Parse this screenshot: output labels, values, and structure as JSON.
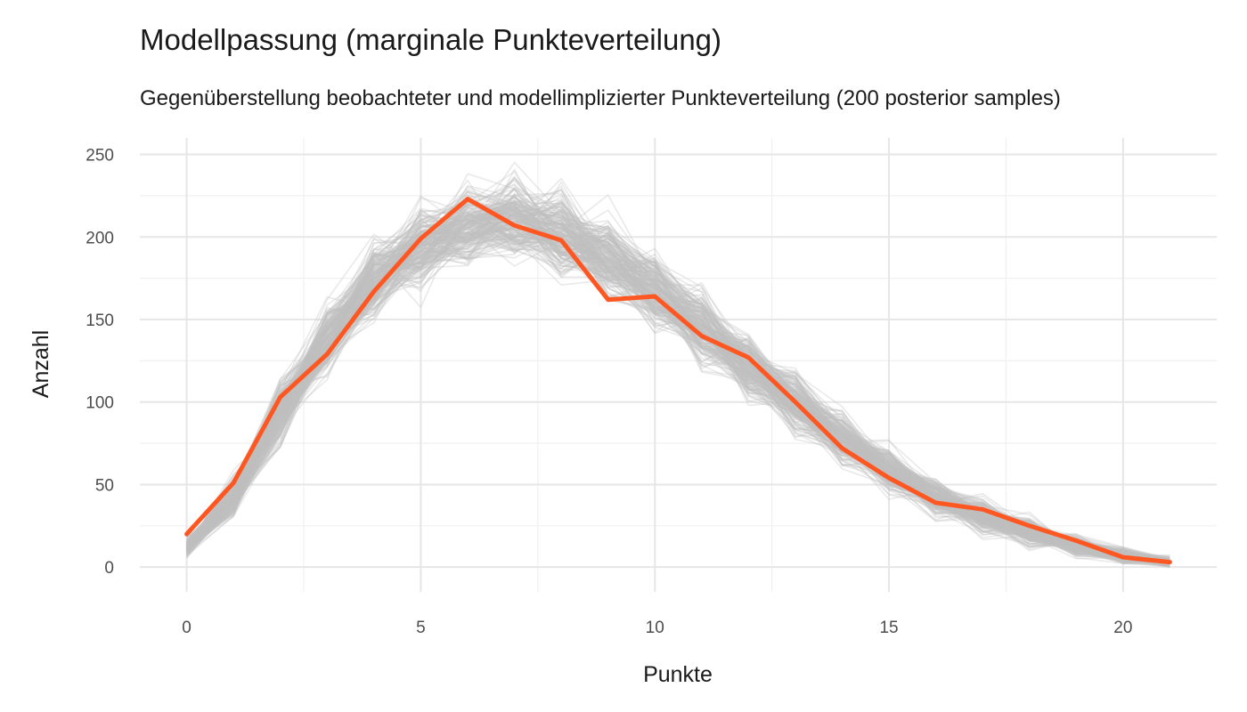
{
  "chart_data": {
    "type": "line",
    "title": "Modellpassung (marginale Punkteverteilung)",
    "subtitle": "Gegenüberstellung beobachteter und modellimplizierter Punkteverteilung (200 posterior samples)",
    "xlabel": "Punkte",
    "ylabel": "Anzahl",
    "xlim": [
      -1,
      22
    ],
    "ylim": [
      -15,
      260
    ],
    "x_ticks": [
      0,
      5,
      10,
      15,
      20
    ],
    "y_ticks": [
      0,
      50,
      100,
      150,
      200,
      250
    ],
    "grid": true,
    "legend": "none",
    "x": [
      0,
      1,
      2,
      3,
      4,
      5,
      6,
      7,
      8,
      9,
      10,
      11,
      12,
      13,
      14,
      15,
      16,
      17,
      18,
      19,
      20,
      21
    ],
    "series": [
      {
        "role": "observed",
        "color": "#ff5722",
        "values": [
          20,
          51,
          103,
          129,
          167,
          199,
          223,
          207,
          198,
          162,
          164,
          140,
          127,
          100,
          72,
          54,
          39,
          35,
          25,
          16,
          6,
          3
        ]
      },
      {
        "role": "posterior-predictive-mean",
        "color": "#bfbfbf",
        "n_samples": 200,
        "values": [
          12,
          42,
          95,
          138,
          173,
          195,
          208,
          210,
          203,
          188,
          168,
          145,
          122,
          99,
          78,
          59,
          43,
          31,
          21,
          13,
          7,
          3
        ]
      }
    ]
  }
}
